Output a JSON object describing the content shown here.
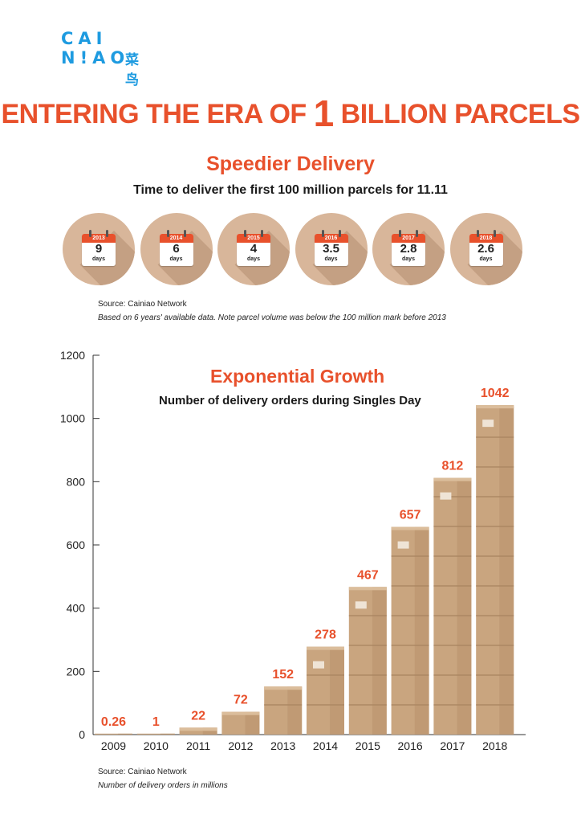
{
  "logo": {
    "line1": "CAI",
    "line2": "N!AO",
    "chinese": "菜鸟"
  },
  "headline": {
    "before": "ENTERING THE ERA OF ",
    "number": "1",
    "after": " BILLION PARCELS"
  },
  "speedier": {
    "title": "Speedier Delivery",
    "subtitle": "Time to deliver the first 100 million parcels for 11.11",
    "items": [
      {
        "year": "2013",
        "value": "9",
        "unit": "days"
      },
      {
        "year": "2014",
        "value": "6",
        "unit": "days"
      },
      {
        "year": "2015",
        "value": "4",
        "unit": "days"
      },
      {
        "year": "2016",
        "value": "3.5",
        "unit": "days"
      },
      {
        "year": "2017",
        "value": "2.8",
        "unit": "days"
      },
      {
        "year": "2018",
        "value": "2.6",
        "unit": "days"
      }
    ],
    "source": "Source: Cainiao Network",
    "footnote": "Based on 6 years' available data. Note parcel volume was below the 100 million mark before 2013"
  },
  "colors": {
    "accent": "#e8512c",
    "box": "#c9a57f",
    "box_dark": "#a8835f",
    "circle": "#d8b69a",
    "brand": "#1e9be0"
  },
  "chart_data": {
    "type": "bar",
    "title": "Exponential Growth",
    "subtitle": "Number of delivery orders during Singles Day",
    "categories": [
      "2009",
      "2010",
      "2011",
      "2012",
      "2013",
      "2014",
      "2015",
      "2016",
      "2017",
      "2018"
    ],
    "values": [
      0.26,
      1,
      22,
      72,
      152,
      278,
      467,
      657,
      812,
      1042
    ],
    "value_labels": [
      "0.26",
      "1",
      "22",
      "72",
      "152",
      "278",
      "467",
      "657",
      "812",
      "1042"
    ],
    "ylim": [
      0,
      1200
    ],
    "yticks": [
      0,
      200,
      400,
      600,
      800,
      1000,
      1200
    ],
    "grid": false,
    "source": "Source: Cainiao Network",
    "note": "Number of delivery orders in millions"
  }
}
